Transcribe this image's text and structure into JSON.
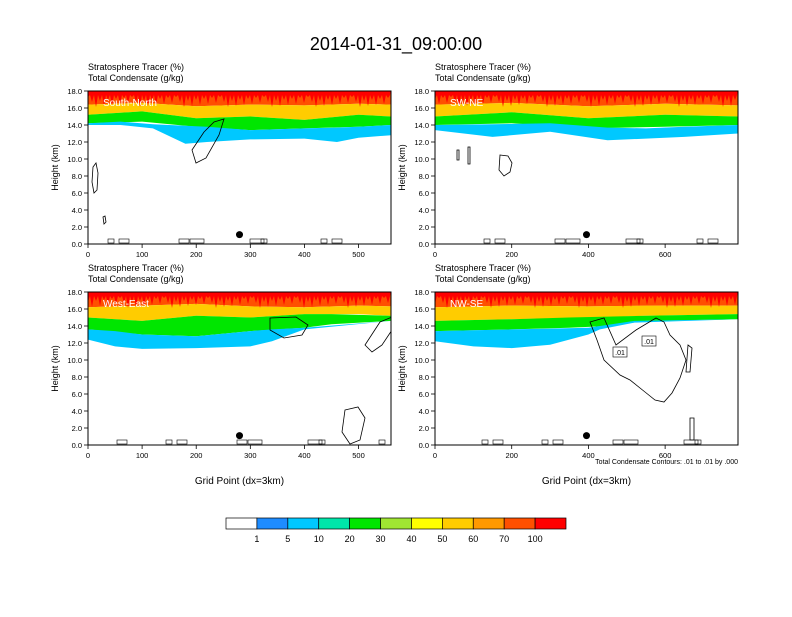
{
  "figure": {
    "title": "2014-01-31_09:00:00",
    "contour_note": "Total Condensate Contours: .01 to .01 by .000",
    "contour_labels": [
      ".01",
      ".01"
    ]
  },
  "colorbar": {
    "labels": [
      "1",
      "5",
      "10",
      "20",
      "30",
      "40",
      "50",
      "60",
      "70",
      "100"
    ],
    "colors": [
      "#ffffff",
      "#1e8cff",
      "#00c8ff",
      "#00e6aa",
      "#00e600",
      "#a0e632",
      "#ffff00",
      "#ffcc00",
      "#ff9900",
      "#ff5000",
      "#ff0000"
    ]
  },
  "chart_data": [
    {
      "type": "heatmap",
      "title": "Stratosphere Tracer   (%)",
      "subtitle": "Total Condensate   (g/kg)",
      "panel_label": "South-North",
      "xlabel": "",
      "ylabel": "Height (km)",
      "xlim": [
        0,
        560
      ],
      "ylim": [
        0,
        18
      ],
      "xticks": [
        "0",
        "100",
        "200",
        "300",
        "400",
        "500"
      ],
      "yticks": [
        "0.0",
        "2.0",
        "4.0",
        "6.0",
        "8.0",
        "10.0",
        "12.0",
        "14.0",
        "16.0",
        "18.0"
      ],
      "marker_x": 280,
      "marker_y": 1.1,
      "bands": [
        {
          "level": 100,
          "x": [
            0,
            560
          ],
          "bottom": [
            17.5,
            17.5
          ],
          "top": [
            18,
            18
          ]
        },
        {
          "level": 70,
          "x": [
            0,
            100,
            200,
            300,
            400,
            500,
            560
          ],
          "bottom": [
            16.4,
            16.6,
            16.2,
            16.4,
            16.3,
            16.5,
            16.4
          ],
          "top": [
            18,
            18,
            18,
            18,
            18,
            18,
            18
          ]
        },
        {
          "level": 50,
          "x": [
            0,
            100,
            200,
            300,
            400,
            500,
            560
          ],
          "bottom": [
            15.2,
            15.6,
            14.8,
            15.0,
            14.6,
            15.2,
            15.0
          ],
          "top": [
            16.4,
            16.6,
            16.2,
            16.4,
            16.3,
            16.5,
            16.4
          ]
        },
        {
          "level": 20,
          "x": [
            0,
            100,
            200,
            300,
            400,
            500,
            560
          ],
          "bottom": [
            14.2,
            14.4,
            13.8,
            13.4,
            13.6,
            13.8,
            14.0
          ],
          "top": [
            15.2,
            15.6,
            14.8,
            15.0,
            14.6,
            15.2,
            15.0
          ]
        },
        {
          "level": 5,
          "x": [
            0,
            60,
            120,
            180,
            220,
            300,
            400,
            460,
            500,
            560
          ],
          "bottom": [
            14.0,
            14.0,
            13.6,
            11.8,
            12.0,
            12.3,
            12.4,
            12.0,
            12.5,
            12.8
          ],
          "top": [
            14.2,
            14.4,
            14.1,
            13.9,
            13.8,
            13.4,
            13.6,
            13.7,
            13.8,
            14.0
          ]
        }
      ]
    },
    {
      "type": "heatmap",
      "title": "Stratosphere Tracer   (%)",
      "subtitle": "Total Condensate   (g/kg)",
      "panel_label": "SW-NE",
      "xlabel": "",
      "ylabel": "Height (km)",
      "xlim": [
        0,
        790
      ],
      "ylim": [
        0,
        18
      ],
      "xticks": [
        "0",
        "200",
        "400",
        "600"
      ],
      "yticks": [
        "0.0",
        "2.0",
        "4.0",
        "6.0",
        "8.0",
        "10.0",
        "12.0",
        "14.0",
        "16.0",
        "18.0"
      ],
      "marker_x": 395,
      "marker_y": 1.1,
      "bands": [
        {
          "level": 100,
          "x": [
            0,
            790
          ],
          "bottom": [
            17.5,
            17.5
          ],
          "top": [
            18,
            18
          ]
        },
        {
          "level": 70,
          "x": [
            0,
            200,
            400,
            600,
            790
          ],
          "bottom": [
            16.4,
            16.6,
            16.2,
            16.5,
            16.3
          ],
          "top": [
            18,
            18,
            18,
            18,
            18
          ]
        },
        {
          "level": 50,
          "x": [
            0,
            200,
            400,
            600,
            790
          ],
          "bottom": [
            15.0,
            15.5,
            14.8,
            15.2,
            15.0
          ],
          "top": [
            16.4,
            16.6,
            16.2,
            16.5,
            16.3
          ]
        },
        {
          "level": 20,
          "x": [
            0,
            200,
            400,
            600,
            790
          ],
          "bottom": [
            14.0,
            14.2,
            13.6,
            13.8,
            14.0
          ],
          "top": [
            15.0,
            15.5,
            14.8,
            15.2,
            15.0
          ]
        },
        {
          "level": 5,
          "x": [
            0,
            150,
            300,
            450,
            550,
            650,
            790
          ],
          "bottom": [
            13.4,
            12.6,
            13.2,
            12.2,
            12.4,
            12.6,
            13.0
          ],
          "top": [
            14.0,
            14.1,
            14.2,
            13.7,
            13.6,
            13.8,
            14.0
          ]
        }
      ]
    },
    {
      "type": "heatmap",
      "title": "Stratosphere Tracer   (%)",
      "subtitle": "Total Condensate   (g/kg)",
      "panel_label": "West-East",
      "xlabel": "Grid Point (dx=3km)",
      "ylabel": "Height (km)",
      "xlim": [
        0,
        560
      ],
      "ylim": [
        0,
        18
      ],
      "xticks": [
        "0",
        "100",
        "200",
        "300",
        "400",
        "500"
      ],
      "yticks": [
        "0.0",
        "2.0",
        "4.0",
        "6.0",
        "8.0",
        "10.0",
        "12.0",
        "14.0",
        "16.0",
        "18.0"
      ],
      "marker_x": 280,
      "marker_y": 1.1,
      "bands": [
        {
          "level": 100,
          "x": [
            0,
            560
          ],
          "bottom": [
            17.5,
            17.5
          ],
          "top": [
            18,
            18
          ]
        },
        {
          "level": 70,
          "x": [
            0,
            100,
            200,
            300,
            400,
            500,
            560
          ],
          "bottom": [
            16.2,
            16.4,
            16.6,
            16.3,
            16.2,
            16.4,
            16.3
          ],
          "top": [
            18,
            18,
            18,
            18,
            18,
            18,
            18
          ]
        },
        {
          "level": 50,
          "x": [
            0,
            100,
            200,
            300,
            400,
            500,
            560
          ],
          "bottom": [
            15.0,
            14.6,
            15.2,
            15.0,
            15.4,
            15.4,
            15.2
          ],
          "top": [
            16.2,
            16.4,
            16.6,
            16.3,
            16.2,
            16.4,
            16.3
          ]
        },
        {
          "level": 20,
          "x": [
            0,
            100,
            200,
            300,
            400,
            450,
            560
          ],
          "bottom": [
            13.6,
            13.0,
            12.8,
            13.4,
            13.8,
            14.2,
            14.6
          ],
          "top": [
            15.0,
            14.6,
            15.2,
            15.0,
            15.4,
            15.4,
            15.2
          ]
        },
        {
          "level": 5,
          "x": [
            0,
            50,
            100,
            200,
            300,
            340,
            400,
            560
          ],
          "bottom": [
            12.4,
            11.6,
            11.3,
            11.4,
            11.6,
            12.2,
            13.6,
            14.6
          ],
          "top": [
            13.6,
            13.4,
            13.0,
            12.8,
            13.4,
            13.6,
            13.8,
            14.6
          ]
        }
      ]
    },
    {
      "type": "heatmap",
      "title": "Stratosphere Tracer   (%)",
      "subtitle": "Total Condensate   (g/kg)",
      "panel_label": "NW-SE",
      "xlabel": "Grid Point (dx=3km)",
      "ylabel": "Height (km)",
      "xlim": [
        0,
        790
      ],
      "ylim": [
        0,
        18
      ],
      "xticks": [
        "0",
        "200",
        "400",
        "600"
      ],
      "yticks": [
        "0.0",
        "2.0",
        "4.0",
        "6.0",
        "8.0",
        "10.0",
        "12.0",
        "14.0",
        "16.0",
        "18.0"
      ],
      "marker_x": 395,
      "marker_y": 1.1,
      "bands": [
        {
          "level": 100,
          "x": [
            0,
            790
          ],
          "bottom": [
            17.5,
            17.5
          ],
          "top": [
            18,
            18
          ]
        },
        {
          "level": 70,
          "x": [
            0,
            200,
            400,
            600,
            790
          ],
          "bottom": [
            16.2,
            16.4,
            16.3,
            16.4,
            16.4
          ],
          "top": [
            18,
            18,
            18,
            18,
            18
          ]
        },
        {
          "level": 50,
          "x": [
            0,
            200,
            400,
            550,
            790
          ],
          "bottom": [
            14.6,
            14.8,
            15.0,
            15.2,
            15.4
          ],
          "top": [
            16.2,
            16.4,
            16.3,
            16.4,
            16.4
          ]
        },
        {
          "level": 20,
          "x": [
            0,
            200,
            350,
            450,
            550,
            790
          ],
          "bottom": [
            13.4,
            13.6,
            13.8,
            14.0,
            14.6,
            14.8
          ],
          "top": [
            14.6,
            14.8,
            15.0,
            15.1,
            15.2,
            15.4
          ]
        },
        {
          "level": 5,
          "x": [
            0,
            100,
            200,
            300,
            400,
            430,
            520,
            790
          ],
          "bottom": [
            12.2,
            11.6,
            11.4,
            11.8,
            13.0,
            13.6,
            14.4,
            14.8
          ],
          "top": [
            13.4,
            13.5,
            13.6,
            13.7,
            13.8,
            14.0,
            14.6,
            14.8
          ]
        }
      ]
    }
  ]
}
